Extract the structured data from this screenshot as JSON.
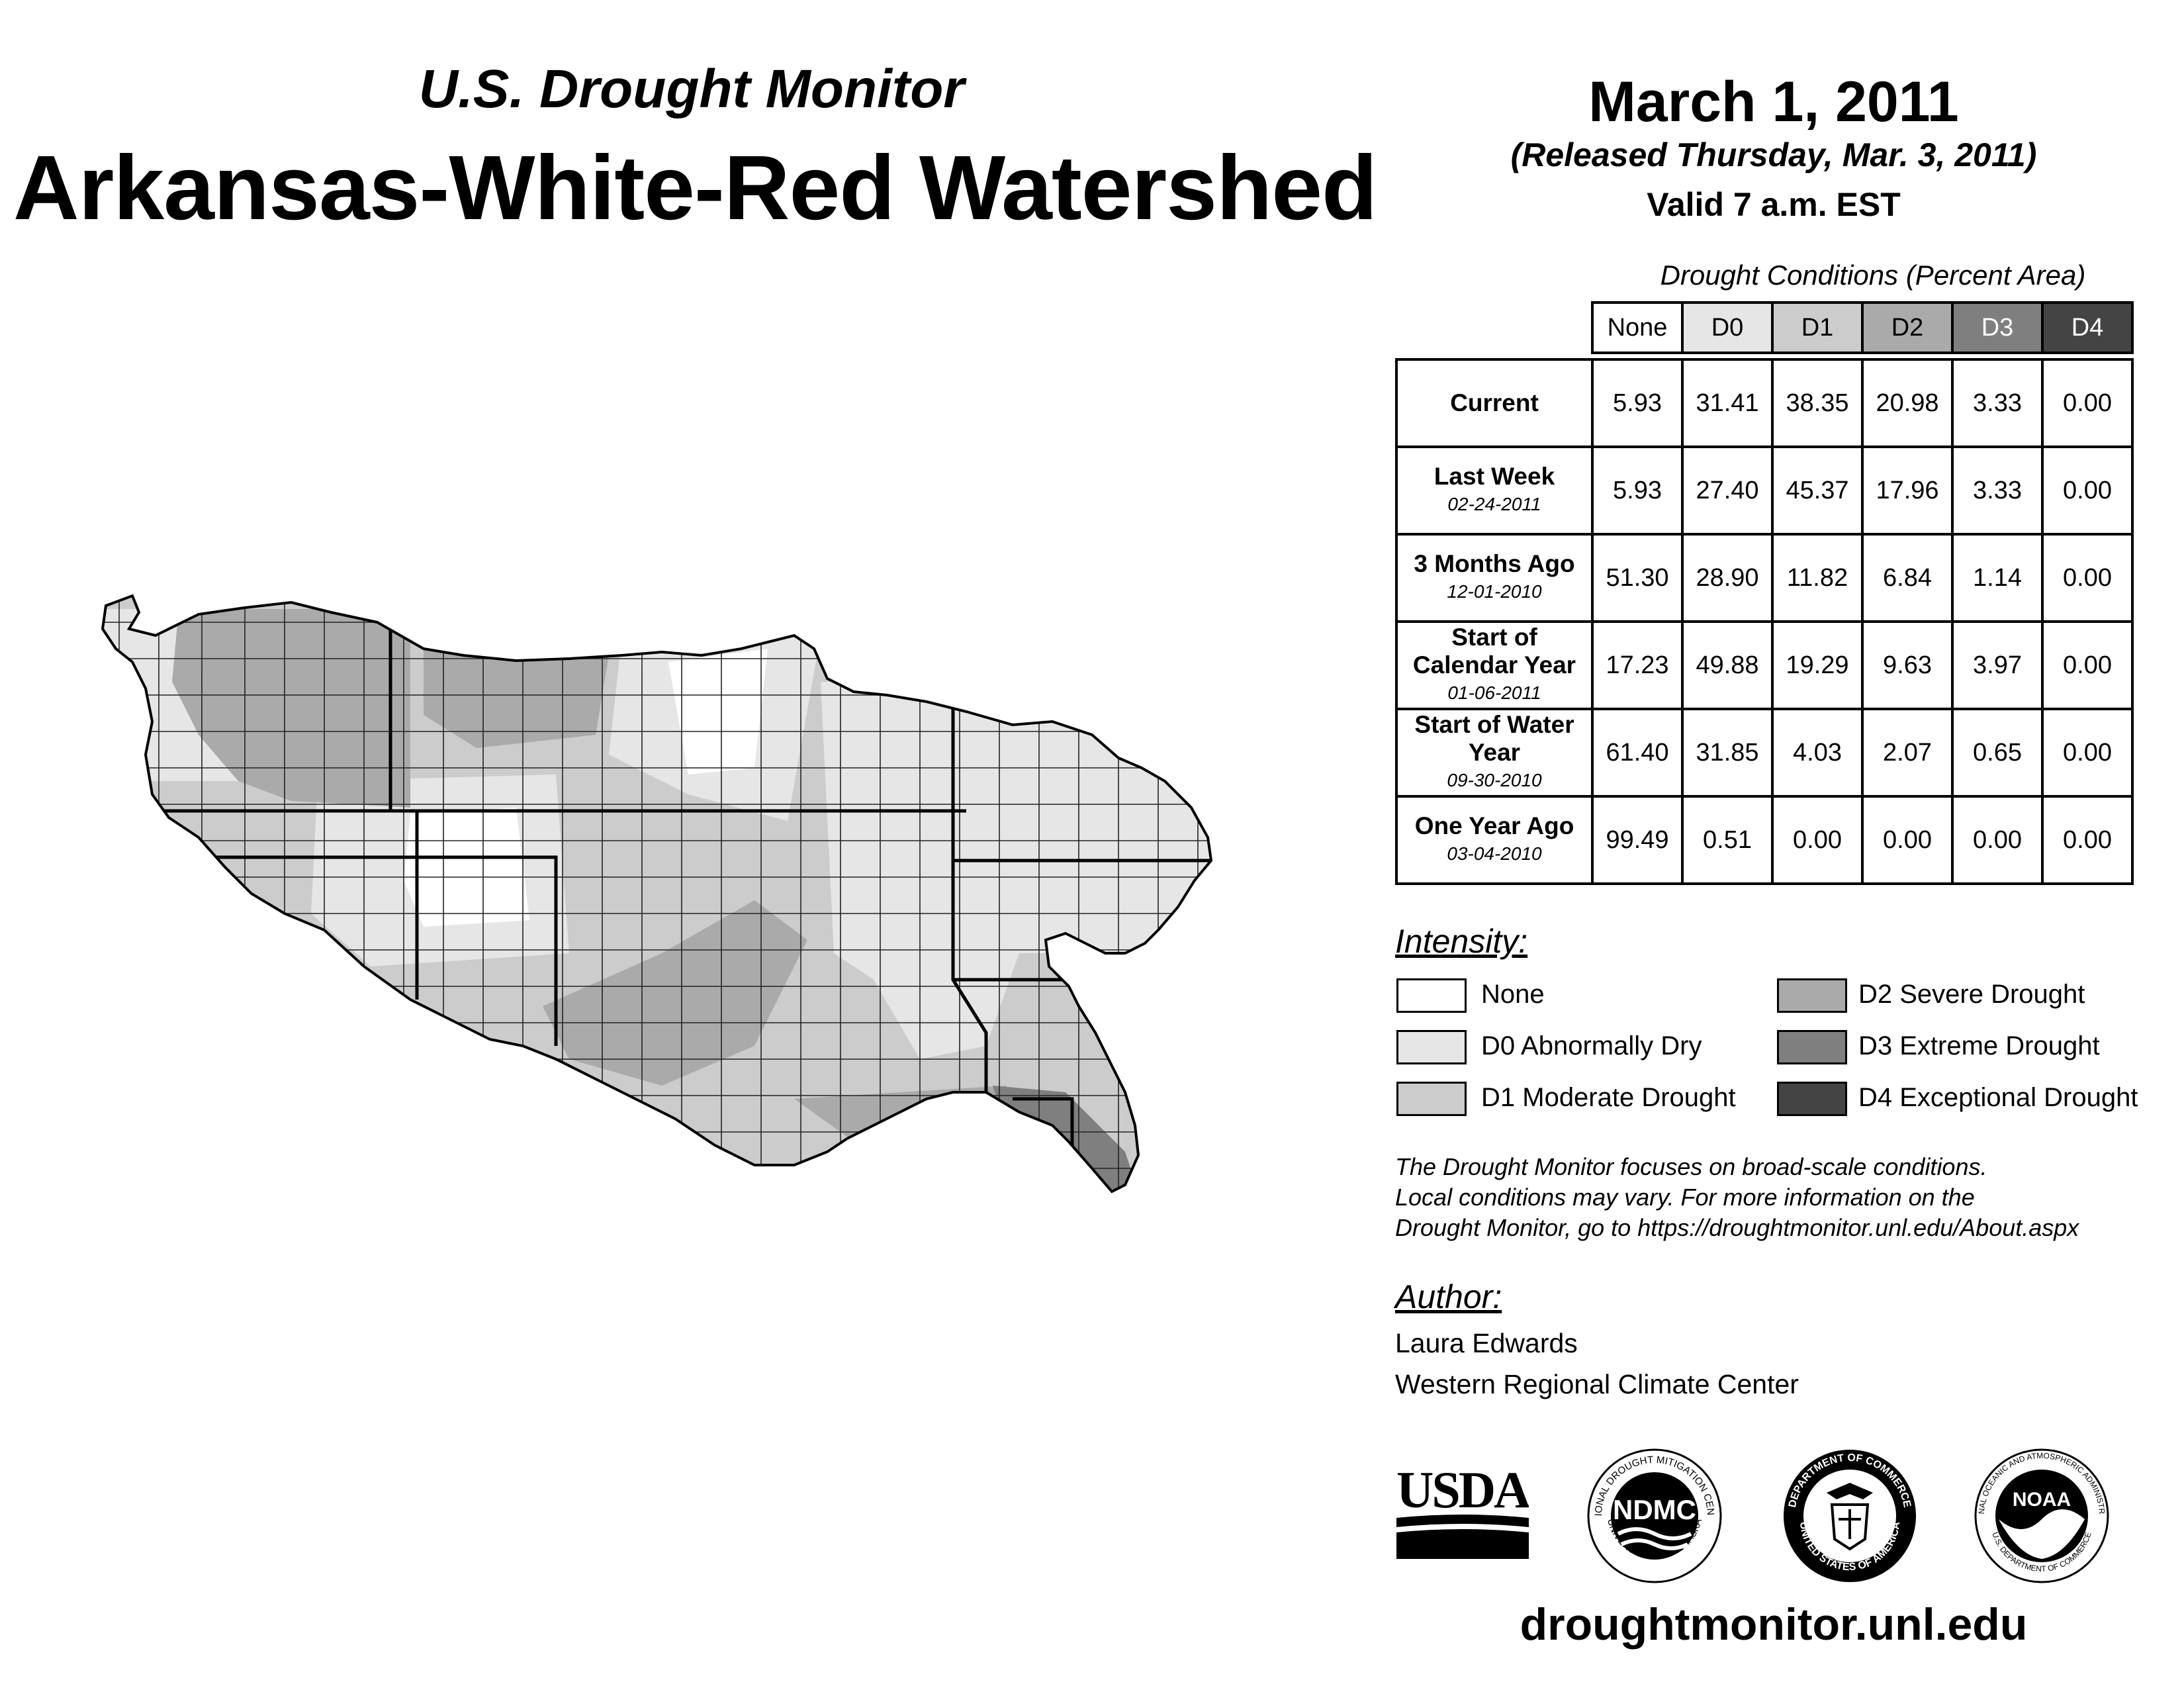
{
  "header": {
    "subtitle": "U.S. Drought Monitor",
    "title": "Arkansas-White-Red Watershed"
  },
  "date": {
    "title": "March 1, 2011",
    "released": "(Released Thursday, Mar. 3, 2011)",
    "valid": "Valid 7 a.m. EST"
  },
  "table": {
    "title": "Drought Conditions (Percent Area)",
    "columns": [
      {
        "label": "None",
        "bg": "#ffffff",
        "fg": "#000000"
      },
      {
        "label": "D0",
        "bg": "#e6e6e6",
        "fg": "#000000"
      },
      {
        "label": "D1",
        "bg": "#cccccc",
        "fg": "#000000"
      },
      {
        "label": "D2",
        "bg": "#aaaaaa",
        "fg": "#000000"
      },
      {
        "label": "D3",
        "bg": "#7f7f7f",
        "fg": "#ffffff"
      },
      {
        "label": "D4",
        "bg": "#444444",
        "fg": "#ffffff"
      }
    ],
    "rows": [
      {
        "label": "Current",
        "date": "",
        "values": [
          "5.93",
          "31.41",
          "38.35",
          "20.98",
          "3.33",
          "0.00"
        ]
      },
      {
        "label": "Last Week",
        "date": "02-24-2011",
        "values": [
          "5.93",
          "27.40",
          "45.37",
          "17.96",
          "3.33",
          "0.00"
        ]
      },
      {
        "label": "3 Months Ago",
        "date": "12-01-2010",
        "values": [
          "51.30",
          "28.90",
          "11.82",
          "6.84",
          "1.14",
          "0.00"
        ]
      },
      {
        "label": "Start of Calendar Year",
        "date": "01-06-2011",
        "values": [
          "17.23",
          "49.88",
          "19.29",
          "9.63",
          "3.97",
          "0.00"
        ]
      },
      {
        "label": "Start of Water Year",
        "date": "09-30-2010",
        "values": [
          "61.40",
          "31.85",
          "4.03",
          "2.07",
          "0.65",
          "0.00"
        ]
      },
      {
        "label": "One Year Ago",
        "date": "03-04-2010",
        "values": [
          "99.49",
          "0.51",
          "0.00",
          "0.00",
          "0.00",
          "0.00"
        ]
      }
    ]
  },
  "intensity": {
    "heading": "Intensity:",
    "items": [
      {
        "label": "None",
        "color": "#ffffff"
      },
      {
        "label": "D0 Abnormally Dry",
        "color": "#e6e6e6"
      },
      {
        "label": "D1 Moderate Drought",
        "color": "#cccccc"
      },
      {
        "label": "D2 Severe Drought",
        "color": "#aaaaaa"
      },
      {
        "label": "D3 Extreme Drought",
        "color": "#7f7f7f"
      },
      {
        "label": "D4 Exceptional Drought",
        "color": "#444444"
      }
    ]
  },
  "note": {
    "line1": "The Drought Monitor focuses on broad-scale conditions.",
    "line2": "Local conditions may vary. For more information on the",
    "line3": "Drought Monitor, go to https://droughtmonitor.unl.edu/About.aspx"
  },
  "author": {
    "heading": "Author:",
    "name": "Laura Edwards",
    "org": "Western Regional Climate Center"
  },
  "logos": {
    "usda": "USDA",
    "ndmc": "NDMC",
    "ndmc_ring_top": "NATIONAL DROUGHT MITIGATION CENTER",
    "ndmc_ring_bottom": "UNIVERSITY OF NEBRASKA",
    "doc_ring_top": "DEPARTMENT OF COMMERCE",
    "doc_ring_bottom": "UNITED STATES OF AMERICA",
    "noaa": "NOAA",
    "noaa_ring_top": "NATIONAL OCEANIC AND ATMOSPHERIC ADMINISTRATION",
    "noaa_ring_bottom": "U.S. DEPARTMENT OF COMMERCE"
  },
  "website": "droughtmonitor.unl.edu"
}
